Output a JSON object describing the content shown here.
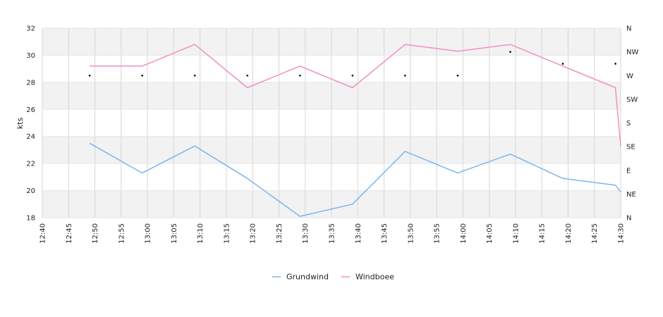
{
  "chart_data": {
    "type": "line",
    "ylabel": "kts",
    "ylim": [
      18,
      32
    ],
    "yticks": [
      18,
      20,
      22,
      24,
      26,
      28,
      30,
      32
    ],
    "y2_ticks": [
      "N",
      "NE",
      "E",
      "SE",
      "S",
      "SW",
      "W",
      "NW",
      "N"
    ],
    "x_ticks": [
      "12:40",
      "12:45",
      "12:50",
      "12:55",
      "13:00",
      "13:05",
      "13:10",
      "13:15",
      "13:20",
      "13:25",
      "13:30",
      "13:35",
      "13:40",
      "13:45",
      "13:50",
      "13:55",
      "14:00",
      "14:05",
      "14:10",
      "14:15",
      "14:20",
      "14:25",
      "14:30"
    ],
    "x_range": [
      "12:40",
      "14:30"
    ],
    "grid": true,
    "legend_position": "bottom",
    "series": [
      {
        "name": "Grundwind",
        "color": "#7cb5ec",
        "points": [
          [
            "12:49",
            23.5
          ],
          [
            "12:59",
            21.3
          ],
          [
            "13:09",
            23.3
          ],
          [
            "13:19",
            20.9
          ],
          [
            "13:29",
            18.1
          ],
          [
            "13:39",
            19.0
          ],
          [
            "13:49",
            22.9
          ],
          [
            "13:59",
            21.3
          ],
          [
            "14:09",
            22.7
          ],
          [
            "14:19",
            20.9
          ],
          [
            "14:29",
            20.4
          ],
          [
            "14:30",
            19.9
          ]
        ]
      },
      {
        "name": "Windboee",
        "color": "#f28fc4",
        "points": [
          [
            "12:49",
            29.2
          ],
          [
            "12:59",
            29.2
          ],
          [
            "13:09",
            30.8
          ],
          [
            "13:19",
            27.6
          ],
          [
            "13:29",
            29.2
          ],
          [
            "13:39",
            27.6
          ],
          [
            "13:49",
            30.8
          ],
          [
            "13:59",
            30.3
          ],
          [
            "14:09",
            30.8
          ],
          [
            "14:29",
            27.6
          ],
          [
            "14:30",
            23.3
          ]
        ]
      }
    ],
    "direction_points": [
      [
        "12:49",
        "W"
      ],
      [
        "12:59",
        "W"
      ],
      [
        "13:09",
        "W"
      ],
      [
        "13:19",
        "W"
      ],
      [
        "13:29",
        "W"
      ],
      [
        "13:39",
        "W"
      ],
      [
        "13:49",
        "W"
      ],
      [
        "13:59",
        "W"
      ],
      [
        "14:09",
        315
      ],
      [
        "14:19",
        292.5
      ],
      [
        "14:29",
        292.5
      ]
    ]
  }
}
